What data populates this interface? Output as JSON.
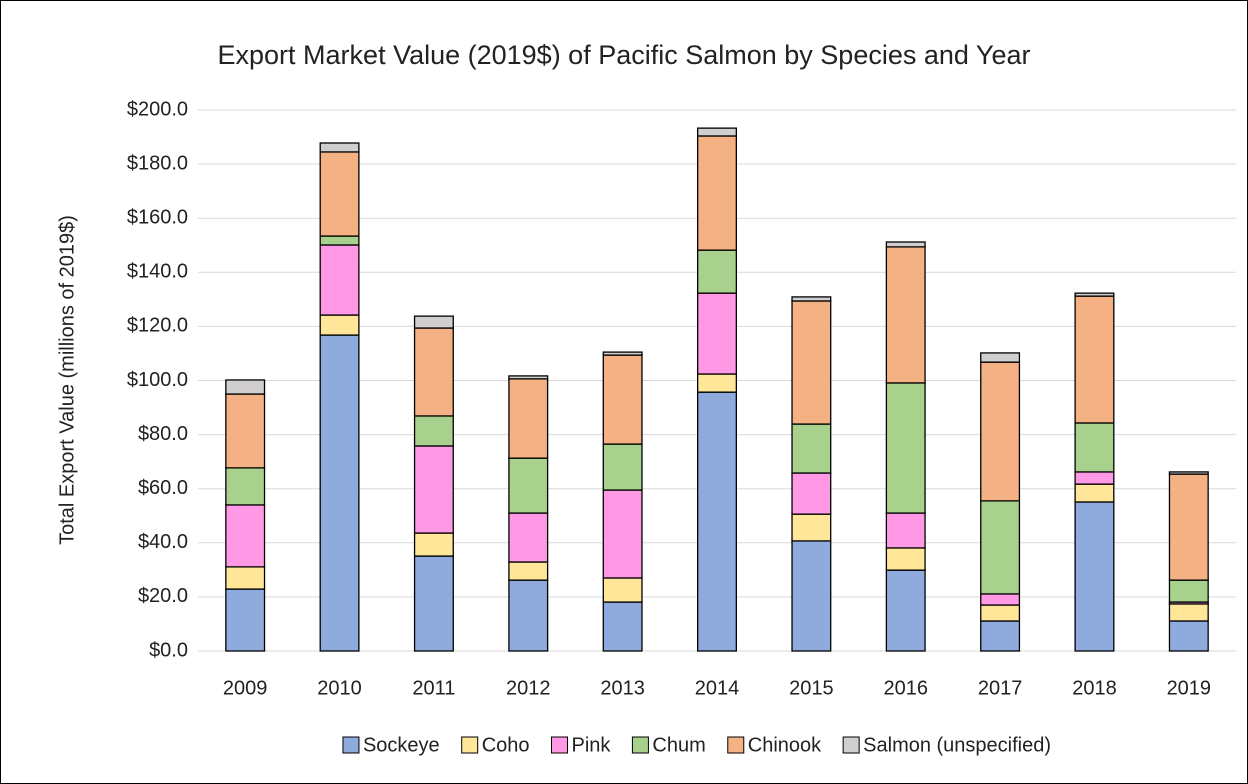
{
  "chart_data": {
    "type": "stacked_bar",
    "title": "Export Market Value (2019$) of Pacific Salmon by Species and Year",
    "y_label": "Total Export Value (millions of 2019$)",
    "categories": [
      "2009",
      "2010",
      "2011",
      "2012",
      "2013",
      "2014",
      "2015",
      "2016",
      "2017",
      "2018",
      "2019"
    ],
    "series": [
      {
        "name": "Sockeye",
        "color": "#8faadc",
        "values": [
          22.9,
          116.8,
          35.1,
          26.2,
          18.1,
          95.7,
          40.7,
          29.9,
          11.1,
          55.1,
          11.1
        ]
      },
      {
        "name": "Coho",
        "color": "#ffe699",
        "values": [
          8.2,
          7.4,
          8.5,
          6.7,
          8.9,
          6.7,
          9.9,
          8.2,
          5.9,
          6.6,
          6.3
        ]
      },
      {
        "name": "Pink",
        "color": "#ff99e6",
        "values": [
          22.9,
          25.9,
          32.2,
          18.1,
          32.5,
          29.9,
          15.2,
          12.9,
          4.1,
          4.5,
          0.7
        ]
      },
      {
        "name": "Chum",
        "color": "#a9d18e",
        "values": [
          13.7,
          3.3,
          11.1,
          20.3,
          17.0,
          15.9,
          18.1,
          48.1,
          34.4,
          18.1,
          8.1
        ]
      },
      {
        "name": "Chinook",
        "color": "#f4b183",
        "values": [
          27.3,
          31.1,
          32.5,
          29.3,
          32.9,
          42.2,
          45.5,
          50.3,
          51.3,
          46.9,
          39.2
        ]
      },
      {
        "name": "Salmon (unspecified)",
        "color": "#d0cece",
        "values": [
          5.2,
          3.3,
          4.4,
          1.1,
          1.1,
          2.9,
          1.5,
          1.8,
          3.4,
          1.1,
          0.8
        ]
      }
    ],
    "ylim": [
      0,
      200
    ],
    "yticks": [
      {
        "value": 0,
        "label": "$0.0"
      },
      {
        "value": 20,
        "label": "$20.0"
      },
      {
        "value": 40,
        "label": "$40.0"
      },
      {
        "value": 60,
        "label": "$60.0"
      },
      {
        "value": 80,
        "label": "$80.0"
      },
      {
        "value": 100,
        "label": "$100.0"
      },
      {
        "value": 120,
        "label": "$120.0"
      },
      {
        "value": 140,
        "label": "$140.0"
      },
      {
        "value": 160,
        "label": "$160.0"
      },
      {
        "value": 180,
        "label": "$180.0"
      },
      {
        "value": 200,
        "label": "$200.0"
      }
    ],
    "grid": true,
    "legend": "bottom"
  }
}
